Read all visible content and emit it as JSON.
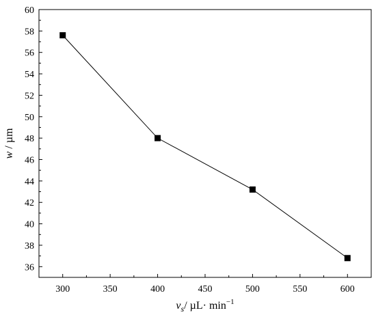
{
  "chart_data": {
    "type": "line",
    "title": "",
    "xlabel": {
      "var": "v",
      "sub": "s",
      "unit": "/ µL· min",
      "sup": "−1"
    },
    "ylabel": {
      "var": "w",
      "unit": " / µm"
    },
    "xlim": [
      275,
      625
    ],
    "ylim": [
      35,
      60
    ],
    "xticks": [
      300,
      350,
      400,
      450,
      500,
      550,
      600
    ],
    "yticks": [
      36,
      38,
      40,
      42,
      44,
      46,
      48,
      50,
      52,
      54,
      56,
      58,
      60
    ],
    "grid": false,
    "legend": "none",
    "marker": "square",
    "color": "#000000",
    "series": [
      {
        "x": [
          300,
          400,
          500,
          600
        ],
        "y": [
          57.6,
          48.0,
          43.2,
          36.8
        ]
      }
    ]
  }
}
